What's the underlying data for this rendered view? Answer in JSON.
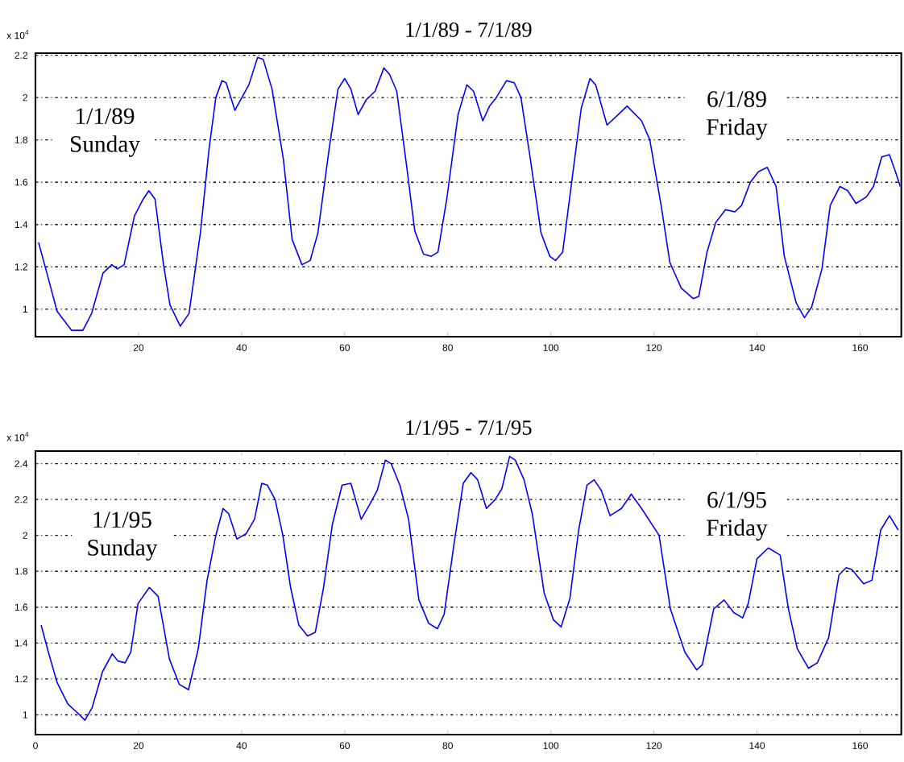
{
  "chart_data": [
    {
      "type": "line",
      "title": "1/1/89 - 7/1/89",
      "annotations": [
        "x 10$^{4}$",
        "1/1/89 Sunday",
        "6/1/89 Friday"
      ],
      "x": [
        0.6,
        2,
        4.2,
        7,
        9.2,
        10.9,
        13.1,
        14.8,
        15.9,
        17.2,
        19.2,
        20.9,
        22,
        23.2,
        24.8,
        26.1,
        28.1,
        29.8,
        32,
        33.7,
        35,
        36.2,
        37,
        38.7,
        41.4,
        43.1,
        44.2,
        45.9,
        48.1,
        49.8,
        51.7,
        53.3,
        54.8,
        57,
        58.7,
        60,
        61.2,
        62.6,
        64.2,
        65.9,
        67.6,
        68.7,
        70.1,
        72,
        73.6,
        75.3,
        76.8,
        78.1,
        79.8,
        82,
        83.7,
        85,
        86.8,
        88.1,
        89.4,
        91.4,
        92.9,
        94.2,
        95.9,
        98.1,
        99.8,
        100.9,
        102.3,
        104.2,
        105.9,
        107.6,
        108.7,
        110.9,
        113.1,
        114.8,
        117.6,
        119.2,
        121.4,
        123.1,
        125.3,
        127.6,
        128.7,
        130.3,
        132,
        133.9,
        135.7,
        137,
        138.7,
        140.3,
        142,
        143.7,
        145.3,
        147.6,
        149.2,
        150.6,
        152.6,
        154.2,
        156.1,
        157.6,
        159.2,
        161.2,
        162.6,
        164.2,
        165.7,
        167,
        167.8
      ],
      "series": [
        {
          "color": "#0000ff",
          "values": [
            1.315,
            1.19,
            0.99,
            0.9,
            0.9,
            0.98,
            1.17,
            1.21,
            1.19,
            1.21,
            1.44,
            1.52,
            1.56,
            1.52,
            1.22,
            1.02,
            0.92,
            0.98,
            1.36,
            1.76,
            2.0,
            2.08,
            2.07,
            1.94,
            2.06,
            2.19,
            2.18,
            2.04,
            1.71,
            1.33,
            1.21,
            1.23,
            1.36,
            1.76,
            2.04,
            2.09,
            2.04,
            1.92,
            1.99,
            2.03,
            2.14,
            2.11,
            2.03,
            1.68,
            1.37,
            1.26,
            1.25,
            1.27,
            1.52,
            1.92,
            2.06,
            2.03,
            1.89,
            1.96,
            2.0,
            2.08,
            2.07,
            2.0,
            1.73,
            1.36,
            1.25,
            1.23,
            1.27,
            1.63,
            1.95,
            2.09,
            2.06,
            1.87,
            1.92,
            1.96,
            1.89,
            1.8,
            1.49,
            1.22,
            1.1,
            1.05,
            1.06,
            1.27,
            1.41,
            1.47,
            1.46,
            1.49,
            1.6,
            1.65,
            1.67,
            1.58,
            1.25,
            1.03,
            0.96,
            1.01,
            1.19,
            1.49,
            1.58,
            1.56,
            1.5,
            1.53,
            1.58,
            1.72,
            1.73,
            1.64,
            1.58
          ]
        }
      ],
      "xlim": [
        0,
        168
      ],
      "ylim": [
        0.87,
        2.21
      ],
      "xticks": [
        20,
        40,
        60,
        80,
        100,
        120,
        140,
        160
      ],
      "yticks": [
        1,
        1.2,
        1.4,
        1.6,
        1.8,
        2,
        2.2
      ],
      "grid": "y",
      "line_style": "solid"
    },
    {
      "type": "line",
      "title": "1/1/95 - 7/1/95",
      "annotations": [
        "x 10$^{4}$",
        "1/1/95 Sunday",
        "6/1/95 Friday"
      ],
      "x": [
        1.1,
        2.6,
        4.2,
        6.3,
        8.2,
        9.6,
        11,
        13,
        14.9,
        16,
        17.4,
        18.5,
        19.9,
        22.1,
        23.8,
        26,
        27.9,
        29.7,
        31.6,
        33.3,
        35,
        36.4,
        37.5,
        39.1,
        40.9,
        42.5,
        43.9,
        45,
        46.5,
        48,
        49.5,
        51.1,
        52.8,
        54.3,
        55.9,
        57.6,
        59.5,
        61.2,
        63.2,
        64.8,
        66.3,
        67.9,
        69,
        70.7,
        72.4,
        74.4,
        76.3,
        78,
        79.3,
        81.3,
        83,
        84.5,
        85.8,
        87.5,
        89.2,
        90.5,
        92,
        93.1,
        94.8,
        96.4,
        98.7,
        100.5,
        102,
        103.7,
        105.4,
        107,
        108.4,
        109.8,
        111.5,
        113.7,
        115.6,
        117.6,
        121,
        123.2,
        126,
        128.3,
        129.4,
        131.6,
        133.6,
        135.5,
        137.2,
        138.3,
        140,
        142.2,
        144.5,
        146.1,
        147.8,
        150,
        151.7,
        153.9,
        155.9,
        157.3,
        158.4,
        160.7,
        162.3,
        164,
        165.7,
        167.4
      ],
      "series": [
        {
          "color": "#0000ff",
          "values": [
            1.5,
            1.34,
            1.18,
            1.06,
            1.01,
            0.97,
            1.04,
            1.24,
            1.34,
            1.3,
            1.29,
            1.35,
            1.62,
            1.71,
            1.66,
            1.31,
            1.17,
            1.14,
            1.37,
            1.75,
            2.0,
            2.15,
            2.12,
            1.98,
            2.01,
            2.09,
            2.29,
            2.28,
            2.2,
            2.0,
            1.71,
            1.5,
            1.44,
            1.46,
            1.71,
            2.06,
            2.28,
            2.29,
            2.09,
            2.17,
            2.25,
            2.42,
            2.4,
            2.28,
            2.09,
            1.64,
            1.51,
            1.48,
            1.56,
            1.97,
            2.29,
            2.35,
            2.31,
            2.15,
            2.2,
            2.26,
            2.44,
            2.42,
            2.31,
            2.12,
            1.68,
            1.53,
            1.49,
            1.65,
            2.03,
            2.28,
            2.31,
            2.25,
            2.11,
            2.15,
            2.23,
            2.15,
            2.0,
            1.59,
            1.35,
            1.25,
            1.28,
            1.59,
            1.64,
            1.57,
            1.54,
            1.62,
            1.87,
            1.93,
            1.89,
            1.59,
            1.37,
            1.26,
            1.29,
            1.43,
            1.78,
            1.82,
            1.81,
            1.73,
            1.75,
            2.03,
            2.11,
            2.03
          ]
        }
      ],
      "xlim": [
        0,
        168
      ],
      "ylim": [
        0.89,
        2.47
      ],
      "xticks": [
        0,
        20,
        40,
        60,
        80,
        100,
        120,
        140,
        160
      ],
      "yticks": [
        1,
        1.2,
        1.4,
        1.6,
        1.8,
        2,
        2.2,
        2.4
      ],
      "grid": "y",
      "line_style": "solid"
    }
  ]
}
